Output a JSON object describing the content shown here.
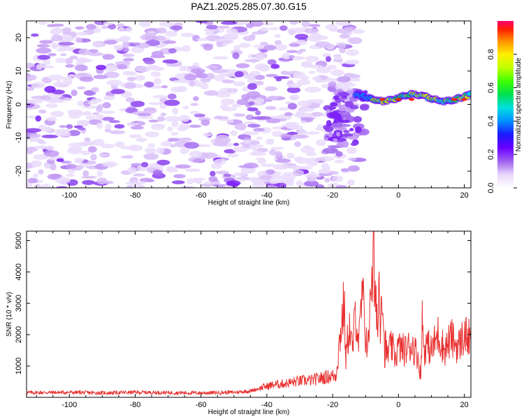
{
  "title": "PAZ1.2025.285.07.30.G15",
  "chart_data": [
    {
      "type": "heatmap",
      "xlabel": "Height of straight line (km)",
      "ylabel": "Frequency (Hz)",
      "xlim": [
        -113,
        22
      ],
      "ylim": [
        -25,
        25
      ],
      "xticks": [
        -100,
        -80,
        -60,
        -40,
        -20,
        0,
        20
      ],
      "yticks": [
        -20,
        -10,
        0,
        10,
        20
      ],
      "colorbar": {
        "label": "Normalized spectral amplitude",
        "range": [
          0.0,
          1.0
        ],
        "ticks": [
          0.0,
          0.2,
          0.4,
          0.6,
          0.8
        ]
      },
      "description_regions": [
        {
          "x_range": [
            -113,
            -12
          ],
          "freq_range": [
            -25,
            25
          ],
          "amplitude": 0.1
        },
        {
          "x_range": [
            -12,
            22
          ],
          "freq_center": [
            2,
            1
          ],
          "amplitude": 0.6
        }
      ]
    },
    {
      "type": "line",
      "xlabel": "Height of straight line (km)",
      "ylabel": "SNR (10 * v/v)",
      "xlim": [
        -113,
        22
      ],
      "ylim": [
        0,
        5300
      ],
      "xticks": [
        -100,
        -80,
        -60,
        -40,
        -20,
        0,
        20
      ],
      "yticks": [
        1000,
        2000,
        3000,
        4000,
        5000
      ],
      "color": "#e8302f",
      "series": [
        {
          "name": "SNR",
          "x": [
            -113,
            -100,
            -90,
            -80,
            -70,
            -60,
            -50,
            -45,
            -42,
            -38,
            -34,
            -30,
            -26,
            -22,
            -19,
            -17.5,
            -16.5,
            -16,
            -15,
            -14,
            -13,
            -12,
            -11,
            -10,
            -9,
            -8.5,
            -8,
            -7.6,
            -7.2,
            -6.8,
            -6.3,
            -6,
            -5.5,
            -5,
            -4.5,
            -4.2,
            -4,
            -3.5,
            -3,
            -2,
            -1,
            0,
            2,
            4,
            6,
            6.8,
            7.2,
            7.8,
            8.5,
            10,
            12,
            14,
            16,
            18,
            20,
            22
          ],
          "y": [
            150,
            160,
            140,
            160,
            150,
            140,
            160,
            200,
            300,
            400,
            450,
            520,
            550,
            650,
            700,
            2200,
            3000,
            1200,
            2300,
            1500,
            2800,
            1700,
            3300,
            2000,
            1600,
            4300,
            3000,
            5200,
            2500,
            3700,
            1800,
            3900,
            2600,
            3900,
            2200,
            1200,
            1700,
            1300,
            1500,
            1600,
            1300,
            1600,
            1500,
            1700,
            1300,
            600,
            2500,
            1500,
            1700,
            1500,
            2000,
            1500,
            1900,
            1600,
            2000,
            1800
          ]
        }
      ]
    }
  ]
}
